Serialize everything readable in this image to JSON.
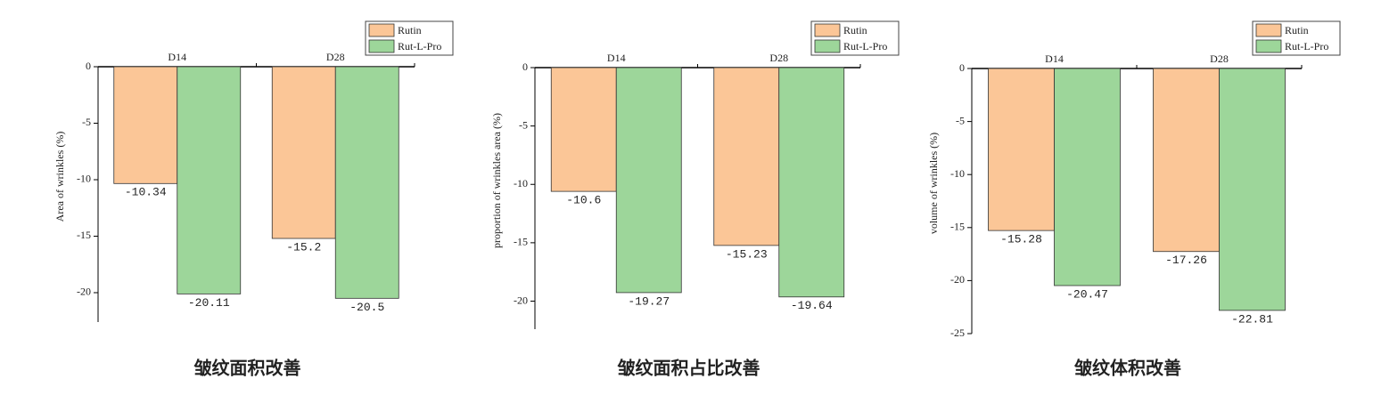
{
  "chart_data": [
    {
      "type": "bar",
      "title": "皱纹面积改善",
      "y_label": "Area of wrinkles (%)",
      "categories": [
        "D14",
        "D28"
      ],
      "series": [
        {
          "name": "Rutin",
          "color": "#fbc697",
          "values": [
            -10.34,
            -15.2
          ]
        },
        {
          "name": "Rut-L-Pro",
          "color": "#9dd69a",
          "values": [
            -20.11,
            -20.5
          ]
        }
      ],
      "ylim": [
        -22.6,
        0
      ],
      "yticks": [
        0,
        -5,
        -10,
        -15,
        -20
      ]
    },
    {
      "type": "bar",
      "title": "皱纹面积占比改善",
      "y_label": "proportion of wrinkles area (%)",
      "categories": [
        "D14",
        "D28"
      ],
      "series": [
        {
          "name": "Rutin",
          "color": "#fbc697",
          "values": [
            -10.6,
            -15.23
          ]
        },
        {
          "name": "Rut-L-Pro",
          "color": "#9dd69a",
          "values": [
            -19.27,
            -19.64
          ]
        }
      ],
      "ylim": [
        -22.4,
        0
      ],
      "yticks": [
        0,
        -5,
        -10,
        -15,
        -20
      ]
    },
    {
      "type": "bar",
      "title": "皱纹体积改善",
      "y_label": "volume of wrinkles (%)",
      "categories": [
        "D14",
        "D28"
      ],
      "series": [
        {
          "name": "Rutin",
          "color": "#fbc697",
          "values": [
            -15.28,
            -17.26
          ]
        },
        {
          "name": "Rut-L-Pro",
          "color": "#9dd69a",
          "values": [
            -20.47,
            -22.81
          ]
        }
      ],
      "ylim": [
        -25,
        0
      ],
      "yticks": [
        0,
        -5,
        -10,
        -15,
        -20,
        -25
      ]
    }
  ]
}
